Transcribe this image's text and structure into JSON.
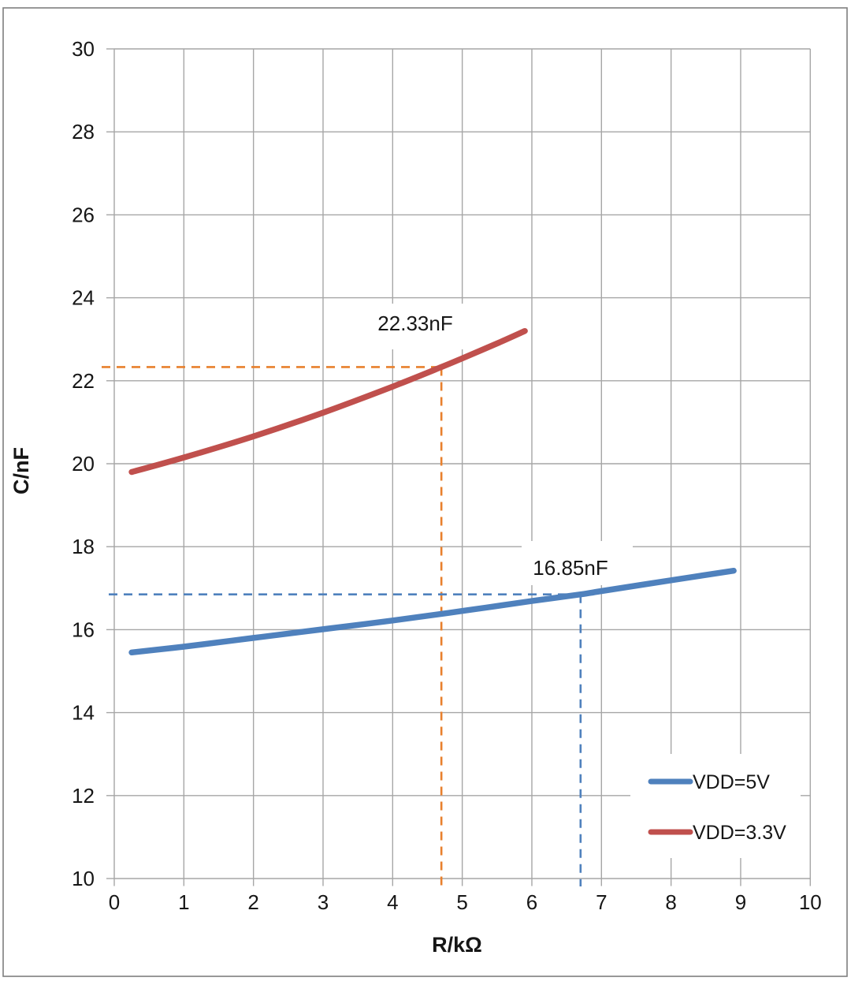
{
  "figure": {
    "background": "#ffffff",
    "border_color": "#7f7f7f"
  },
  "chart_data": {
    "type": "line",
    "title": "",
    "xlabel": "R/kΩ",
    "ylabel": "C/nF",
    "xlim": [
      0,
      10
    ],
    "ylim": [
      10,
      30
    ],
    "x_ticks": [
      0,
      1,
      2,
      3,
      4,
      5,
      6,
      7,
      8,
      9,
      10
    ],
    "y_ticks": [
      10,
      12,
      14,
      16,
      18,
      20,
      22,
      24,
      26,
      28,
      30
    ],
    "grid": true,
    "colors": {
      "gridline": "#a6a6a6",
      "axis": "#a6a6a6",
      "text": "#161616"
    },
    "series": [
      {
        "name": "VDD=5V",
        "color": "#4f81bd",
        "x": [
          0.25,
          1,
          2,
          3,
          4,
          5,
          6,
          6.7,
          7,
          8,
          8.9
        ],
        "y": [
          15.45,
          15.59,
          15.8,
          16.01,
          16.22,
          16.45,
          16.69,
          16.85,
          16.93,
          17.19,
          17.42
        ]
      },
      {
        "name": "VDD=3.3V",
        "color": "#c0504d",
        "x": [
          0.25,
          1,
          2,
          3,
          4,
          4.7,
          5,
          5.5,
          5.9
        ],
        "y": [
          19.8,
          20.15,
          20.66,
          21.23,
          21.86,
          22.33,
          22.54,
          22.9,
          23.2
        ]
      }
    ],
    "annotations": [
      {
        "label": "22.33nF",
        "x": 4.7,
        "y": 22.33,
        "guide_color": "#e8802d"
      },
      {
        "label": "16.85nF",
        "x": 6.7,
        "y": 16.85,
        "guide_color": "#4f81bd"
      }
    ],
    "legend": {
      "position": "inside-bottom-right",
      "items": [
        {
          "label": "VDD=5V",
          "color": "#4f81bd"
        },
        {
          "label": "VDD=3.3V",
          "color": "#c0504d"
        }
      ]
    }
  }
}
